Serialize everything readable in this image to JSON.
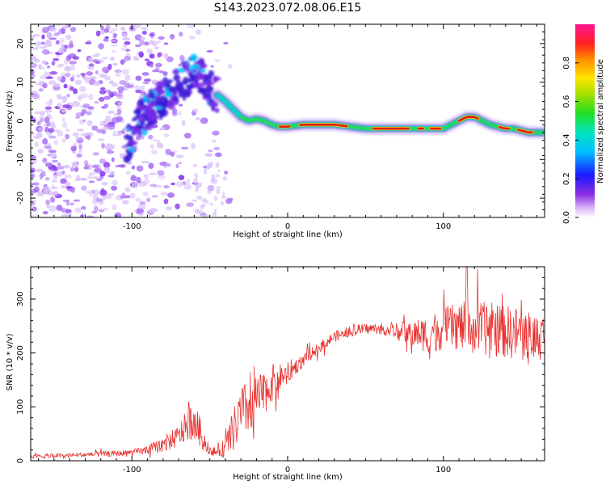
{
  "title": "S143.2023.072.08.06.E15",
  "colors": {
    "snr_line": "#e8312e",
    "ridge_outer": "#3a1fd6",
    "ridge_mid": "#00d8c8",
    "ridge_inner": "#22dd22",
    "ridge_core": "#dd1c1c",
    "noise": "#8a3cf0"
  },
  "chart_data": [
    {
      "type": "heatmap",
      "title": "",
      "xlabel": "Height of straight line (km)",
      "ylabel": "Frequency (Hz)",
      "xlim": [
        -165,
        165
      ],
      "ylim": [
        -25,
        25
      ],
      "xticks": [
        -100,
        0,
        100
      ],
      "yticks": [
        -20,
        -10,
        0,
        10,
        20
      ],
      "grid": false,
      "colorbar": {
        "label": "Normalized spectral amplitude",
        "range": [
          0,
          1
        ],
        "ticks": [
          "0.0",
          "0.2",
          "0.4",
          "0.6",
          "0.8"
        ],
        "colormap": "hsv-rainbow"
      },
      "noise_region_x": [
        -165,
        -45
      ],
      "ridge": {
        "x": [
          -102,
          -95,
          -88,
          -80,
          -72,
          -65,
          -58,
          -52,
          -46,
          -40,
          -35,
          -30,
          -25,
          -20,
          -15,
          -10,
          -5,
          0,
          10,
          20,
          30,
          40,
          50,
          60,
          70,
          80,
          90,
          100,
          105,
          110,
          115,
          120,
          125,
          130,
          135,
          140,
          145,
          150,
          155,
          160,
          165
        ],
        "y": [
          -6,
          0,
          3,
          6,
          9,
          11,
          13,
          9,
          7,
          5,
          3,
          1,
          0,
          0.5,
          0,
          -1,
          -1.5,
          -1.5,
          -1,
          -1,
          -1,
          -1.5,
          -2,
          -2,
          -2,
          -2,
          -2,
          -2,
          -1,
          0,
          1,
          1,
          0,
          -1,
          -1.5,
          -2,
          -2,
          -2.5,
          -3,
          -3,
          -3
        ],
        "amplitude": [
          0.3,
          0.35,
          0.4,
          0.45,
          0.4,
          0.35,
          0.4,
          0.55,
          0.65,
          0.7,
          0.75,
          0.8,
          0.7,
          0.75,
          0.85,
          0.9,
          0.95,
          0.95,
          0.98,
          0.98,
          0.97,
          0.9,
          0.95,
          0.98,
          0.97,
          0.9,
          0.9,
          0.85,
          0.8,
          0.75,
          0.8,
          0.8,
          0.75,
          0.8,
          0.8,
          0.85,
          0.8,
          0.8,
          0.8,
          0.75,
          0.7
        ]
      }
    },
    {
      "type": "line",
      "title": "",
      "xlabel": "Height of straight line (km)",
      "ylabel": "SNR (10 * v/v)",
      "xlim": [
        -165,
        165
      ],
      "ylim": [
        0,
        360
      ],
      "xticks": [
        -100,
        0,
        100
      ],
      "yticks": [
        0,
        100,
        200,
        300
      ],
      "grid": false,
      "series": [
        {
          "x": [
            -165,
            -140,
            -120,
            -100,
            -90,
            -80,
            -70,
            -65,
            -60,
            -55,
            -50,
            -45,
            -40,
            -35,
            -30,
            -25,
            -20,
            -15,
            -10,
            -5,
            0,
            5,
            10,
            20,
            30,
            40,
            50,
            60,
            70,
            80,
            90,
            100,
            110,
            120,
            130,
            140,
            150,
            160,
            165
          ],
          "values": [
            8,
            10,
            12,
            15,
            20,
            30,
            45,
            65,
            75,
            45,
            20,
            15,
            25,
            55,
            85,
            100,
            110,
            125,
            145,
            155,
            160,
            175,
            185,
            210,
            230,
            240,
            245,
            245,
            240,
            235,
            235,
            245,
            250,
            245,
            245,
            240,
            235,
            230,
            230
          ],
          "noise_amplitude": [
            4,
            4,
            5,
            6,
            8,
            15,
            20,
            30,
            35,
            25,
            10,
            8,
            20,
            40,
            55,
            50,
            45,
            40,
            35,
            25,
            20,
            15,
            12,
            10,
            10,
            10,
            10,
            10,
            15,
            25,
            35,
            40,
            45,
            50,
            50,
            50,
            50,
            45,
            45
          ]
        }
      ]
    }
  ]
}
